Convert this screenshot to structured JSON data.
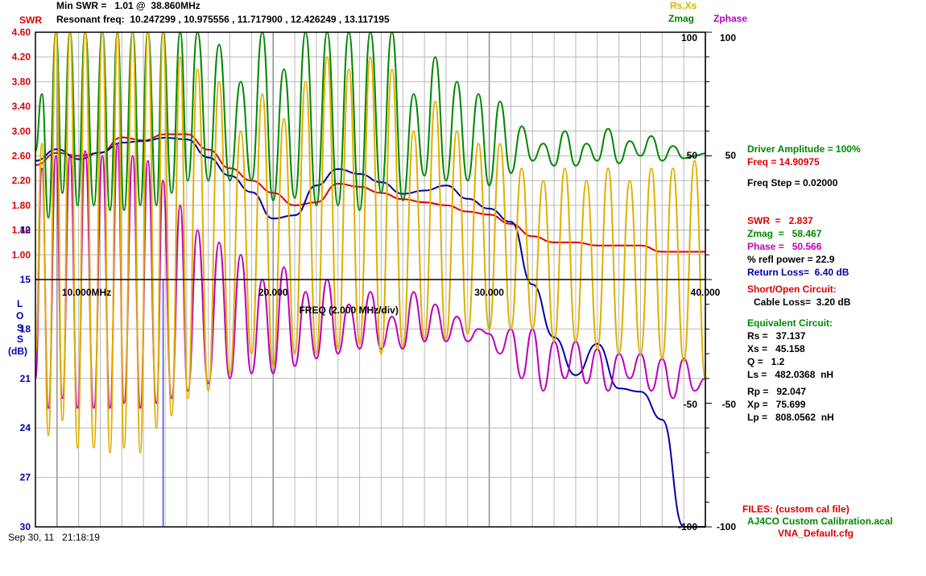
{
  "header": {
    "min_swr": "Min SWR =   1.01 @  38.860MHz",
    "resonant": "Resonant freq:  10.247299 , 10.975556 , 11.717900 , 12.426249 , 13.117195",
    "swr_label": "SWR",
    "rsxs_label": "Rs,Xs",
    "zmag_label": "Zmag",
    "zphase_label": "Zphase"
  },
  "axes": {
    "swr_ticks": [
      "4.60",
      "4.20",
      "3.80",
      "3.40",
      "3.00",
      "2.60",
      "2.20",
      "1.80",
      "1.40",
      "1.00"
    ],
    "loss_title": [
      "L",
      "O",
      "S",
      "S",
      "(dB)"
    ],
    "loss_ticks": [
      "12",
      "15",
      "18",
      "21",
      "24",
      "27",
      "30"
    ],
    "freq_ticks": [
      "10.000MHz",
      "20.000",
      "30.000",
      "40.000"
    ],
    "freq_label": "FREQ (2.000 MHz/div)",
    "rsxs_ticks": [
      "100",
      "50",
      "-50",
      "-100"
    ],
    "zphase_ticks": [
      "100",
      "50",
      "-50",
      "-100"
    ],
    "timestamp": "Sep 30, 11   21:18:19"
  },
  "panel": {
    "driver": "Driver Amplitude = 100%",
    "freq": "Freq = 14.90975",
    "freq_step": "Freq Step = 0.02000",
    "swr": "SWR  =   2.837",
    "zmag": "Zmag  =   58.467",
    "phase": "Phase =   50.566",
    "refl": "% refl power = 22.9",
    "return_loss": "Return Loss=  6.40 dB",
    "short_open": "Short/Open Circuit:",
    "cable_loss": "Cable Loss=  3.20 dB",
    "equiv": "Equivalent Circuit:",
    "rs": "Rs =   37.137",
    "xs": "Xs =   45.158",
    "q": "Q =   1.2",
    "ls": "Ls =   482.0368  nH",
    "rp": "Rp =   92.047",
    "xp": "Xp =   75.699",
    "lp": "Lp =   808.0562  nH",
    "files": "FILES: (custom cal file)",
    "cal_file": "AJ4CO Custom Calibration.acal",
    "cfg_file": "VNA_Default.cfg"
  },
  "colors": {
    "swr": "#dd0000",
    "rsxs": "#e0b000",
    "zmag": "#008800",
    "zphase": "#bb00bb",
    "loss": "#0000aa",
    "grid": "#b8b8b8"
  },
  "chart_data": {
    "type": "line",
    "x_range": [
      9.0,
      40.0
    ],
    "cursor_freq": 14.90975,
    "series": [
      {
        "name": "SWR",
        "axis": "swr",
        "ylim": [
          0.6,
          4.6
        ],
        "x": [
          9.0,
          10.0,
          11.0,
          12.0,
          13.0,
          14.0,
          15.0,
          16.0,
          17.0,
          18.0,
          19.0,
          20.0,
          21.0,
          22.0,
          23.0,
          24.0,
          25.0,
          26.0,
          27.0,
          28.0,
          29.0,
          30.0,
          31.0,
          32.0,
          33.0,
          34.0,
          35.0,
          36.0,
          37.0,
          38.0,
          39.0,
          40.0
        ],
        "values": [
          2.45,
          2.65,
          2.6,
          2.65,
          2.9,
          2.85,
          2.95,
          2.95,
          2.7,
          2.4,
          2.2,
          2.0,
          1.8,
          1.85,
          2.15,
          2.1,
          2.0,
          1.9,
          1.85,
          1.8,
          1.7,
          1.65,
          1.5,
          1.3,
          1.2,
          1.2,
          1.15,
          1.15,
          1.15,
          1.05,
          1.05,
          1.05
        ]
      },
      {
        "name": "Return Loss",
        "axis": "loss",
        "ylim": [
          0,
          30
        ],
        "x": [
          9.0,
          10.0,
          11.0,
          12.0,
          13.0,
          14.0,
          15.0,
          16.0,
          17.0,
          18.0,
          19.0,
          20.0,
          21.0,
          22.0,
          23.0,
          24.0,
          25.0,
          26.0,
          27.0,
          28.0,
          29.0,
          30.0,
          31.0,
          32.0,
          33.0,
          34.0,
          35.0,
          36.0,
          37.0,
          38.0,
          39.0,
          40.0
        ],
        "values": [
          7.8,
          7.1,
          7.7,
          7.3,
          6.7,
          6.6,
          6.4,
          6.5,
          7.6,
          8.7,
          9.7,
          11.3,
          11.1,
          9.3,
          8.3,
          8.6,
          9.1,
          9.8,
          9.6,
          9.3,
          10.1,
          10.7,
          11.5,
          15.3,
          18.5,
          20.8,
          18.9,
          21.6,
          21.8,
          23.5,
          30.0,
          30.0
        ]
      },
      {
        "name": "Zmag",
        "axis": "rsxs",
        "ylim": [
          -100,
          100
        ],
        "x": [
          9.0,
          9.3,
          9.6,
          9.95,
          10.25,
          10.6,
          10.95,
          11.3,
          11.7,
          12.1,
          12.45,
          12.8,
          13.1,
          13.5,
          13.85,
          14.2,
          14.6,
          14.9,
          15.3,
          15.7,
          16.05,
          16.5,
          17.0,
          17.5,
          18.0,
          18.5,
          19.0,
          19.5,
          20.0,
          20.5,
          21.0,
          21.5,
          22.0,
          22.5,
          23.0,
          23.5,
          24.0,
          24.5,
          25.0,
          25.5,
          26.0,
          26.5,
          27.0,
          27.5,
          28.0,
          28.5,
          29.0,
          29.5,
          30.0,
          30.5,
          31.0,
          31.5,
          32.0,
          32.5,
          33.0,
          33.5,
          34.0,
          34.5,
          35.0,
          35.5,
          36.0,
          36.5,
          37.0,
          37.5,
          38.0,
          38.5,
          39.0,
          39.5,
          40.0
        ],
        "values": [
          52,
          75,
          25,
          100,
          35,
          100,
          30,
          100,
          30,
          100,
          28,
          100,
          28,
          100,
          30,
          100,
          30,
          100,
          35,
          100,
          40,
          100,
          40,
          95,
          40,
          80,
          40,
          100,
          32,
          85,
          33,
          100,
          30,
          100,
          30,
          100,
          28,
          100,
          35,
          100,
          32,
          75,
          42,
          90,
          40,
          80,
          40,
          75,
          38,
          72,
          43,
          62,
          48,
          55,
          46,
          60,
          46,
          55,
          48,
          61,
          47,
          56,
          50,
          58,
          48,
          54,
          49,
          50,
          51
        ]
      },
      {
        "name": "Zphase",
        "axis": "zphase",
        "ylim": [
          -100,
          100
        ],
        "x": [
          9.0,
          9.3,
          9.6,
          9.95,
          10.25,
          10.6,
          10.95,
          11.3,
          11.7,
          12.1,
          12.45,
          12.8,
          13.1,
          13.5,
          13.85,
          14.2,
          14.6,
          14.9,
          15.3,
          15.7,
          16.05,
          16.5,
          17.0,
          17.5,
          18.0,
          18.5,
          19.0,
          19.5,
          20.0,
          20.5,
          21.0,
          21.5,
          22.0,
          22.5,
          23.0,
          23.5,
          24.0,
          24.5,
          25.0,
          25.5,
          26.0,
          26.5,
          27.0,
          27.5,
          28.0,
          28.5,
          29.0,
          29.5,
          30.0,
          30.5,
          31.0,
          31.5,
          32.0,
          32.5,
          33.0,
          33.5,
          34.0,
          34.5,
          35.0,
          35.5,
          36.0,
          36.5,
          37.0,
          37.5,
          38.0,
          38.5,
          39.0,
          39.5,
          40.0
        ],
        "values": [
          -40,
          45,
          -52,
          50,
          -48,
          50,
          -52,
          52,
          -52,
          50,
          -52,
          55,
          -50,
          50,
          -52,
          48,
          -50,
          40,
          -48,
          30,
          -45,
          20,
          -42,
          15,
          -40,
          10,
          -38,
          0,
          -38,
          5,
          -35,
          -5,
          -32,
          0,
          -30,
          -10,
          -28,
          -5,
          -28,
          -15,
          -28,
          -5,
          -25,
          -10,
          -25,
          -15,
          -25,
          -20,
          -22,
          -30,
          -20,
          -40,
          -20,
          -45,
          -25,
          -40,
          -25,
          -42,
          -28,
          -45,
          -30,
          -40,
          -30,
          -45,
          -32,
          -48,
          -32,
          -45,
          -40
        ]
      },
      {
        "name": "Rs,Xs",
        "axis": "rsxs",
        "ylim": [
          -100,
          100
        ],
        "x": [
          9.0,
          9.3,
          9.6,
          9.95,
          10.25,
          10.6,
          10.95,
          11.3,
          11.7,
          12.1,
          12.45,
          12.8,
          13.1,
          13.5,
          13.85,
          14.2,
          14.6,
          14.9,
          15.3,
          15.7,
          16.05,
          16.5,
          17.0,
          17.5,
          18.0,
          18.5,
          19.0,
          19.5,
          20.0,
          20.5,
          21.0,
          21.5,
          22.0,
          22.5,
          23.0,
          23.5,
          24.0,
          24.5,
          25.0,
          25.5,
          26.0,
          26.5,
          27.0,
          27.5,
          28.0,
          28.5,
          29.0,
          29.5,
          30.0,
          30.5,
          31.0,
          31.5,
          32.0,
          32.5,
          33.0,
          33.5,
          34.0,
          34.5,
          35.0,
          35.5,
          36.0,
          36.5,
          37.0,
          37.5,
          38.0,
          38.5,
          39.0,
          39.5,
          40.0
        ],
        "values": [
          -30,
          55,
          -63,
          100,
          -57,
          100,
          -68,
          100,
          -68,
          100,
          -70,
          100,
          -68,
          100,
          -70,
          100,
          -60,
          100,
          -55,
          90,
          -48,
          85,
          -45,
          80,
          -38,
          60,
          -30,
          75,
          -35,
          65,
          -30,
          80,
          -30,
          90,
          -28,
          85,
          -26,
          90,
          -30,
          85,
          -27,
          60,
          -24,
          72,
          -24,
          60,
          -22,
          55,
          -20,
          55,
          -20,
          45,
          -20,
          40,
          -25,
          45,
          -25,
          40,
          -28,
          45,
          -30,
          40,
          -30,
          45,
          -32,
          45,
          -33,
          48,
          -40
        ]
      }
    ]
  }
}
